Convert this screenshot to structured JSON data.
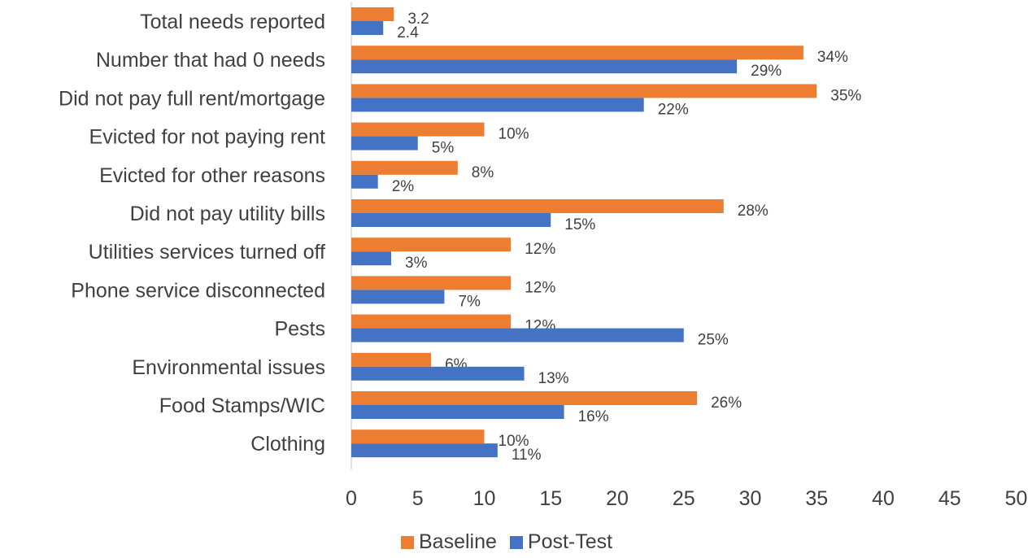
{
  "chart_data": {
    "type": "bar",
    "orientation": "horizontal",
    "categories": [
      "Total needs reported",
      "Number that had 0 needs",
      "Did not pay full rent/mortgage",
      "Evicted for not paying rent",
      "Evicted for other reasons",
      "Did not pay utility bills",
      "Utilities services turned off",
      "Phone service disconnected",
      "Pests",
      "Environmental issues",
      "Food Stamps/WIC",
      "Clothing"
    ],
    "series": [
      {
        "name": "Baseline",
        "color": "#ED7D31",
        "values": [
          3.2,
          34,
          35,
          10,
          8,
          28,
          12,
          12,
          12,
          6,
          26,
          10
        ],
        "labels": [
          "3.2",
          "34%",
          "35%",
          "10%",
          "8%",
          "28%",
          "12%",
          "12%",
          "12%",
          "6%",
          "26%",
          "10%"
        ]
      },
      {
        "name": "Post-Test",
        "color": "#4472C4",
        "values": [
          2.4,
          29,
          22,
          5,
          2,
          15,
          3,
          7,
          25,
          13,
          16,
          11
        ],
        "labels": [
          "2.4",
          "29%",
          "22%",
          "5%",
          "2%",
          "15%",
          "3%",
          "7%",
          "25%",
          "13%",
          "16%",
          "11%"
        ]
      }
    ],
    "xlim": [
      0,
      50
    ],
    "xticks": [
      "0",
      "5",
      "10",
      "15",
      "20",
      "25",
      "30",
      "35",
      "40",
      "45",
      "50"
    ],
    "grid": false,
    "legend_position": "bottom"
  }
}
